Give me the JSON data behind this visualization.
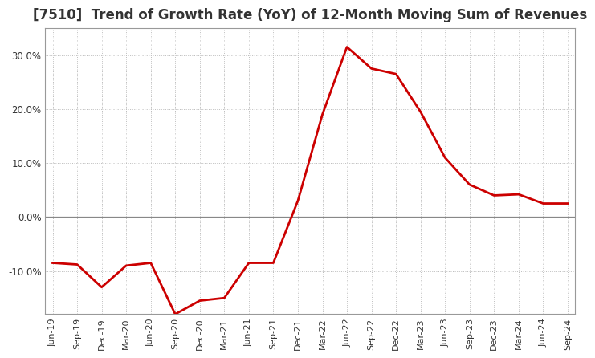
{
  "title": "[7510]  Trend of Growth Rate (YoY) of 12-Month Moving Sum of Revenues",
  "title_fontsize": 12,
  "line_color": "#cc0000",
  "line_width": 2.0,
  "background_color": "#ffffff",
  "grid_color": "#bbbbbb",
  "ylim": [
    -18,
    35
  ],
  "yticks": [
    -10,
    0,
    10,
    20,
    30
  ],
  "xlabels": [
    "Jun-19",
    "Sep-19",
    "Dec-19",
    "Mar-20",
    "Jun-20",
    "Sep-20",
    "Dec-20",
    "Mar-21",
    "Jun-21",
    "Sep-21",
    "Dec-21",
    "Mar-22",
    "Jun-22",
    "Sep-22",
    "Dec-22",
    "Mar-23",
    "Jun-23",
    "Sep-23",
    "Dec-23",
    "Mar-24",
    "Jun-24",
    "Sep-24"
  ],
  "values": [
    -8.5,
    -8.8,
    -13.0,
    -9.0,
    -8.5,
    -18.0,
    -15.5,
    -15.0,
    -8.5,
    -8.5,
    3.0,
    19.0,
    31.5,
    27.5,
    26.5,
    19.5,
    11.0,
    6.0,
    4.0,
    4.2,
    2.5,
    2.5
  ]
}
